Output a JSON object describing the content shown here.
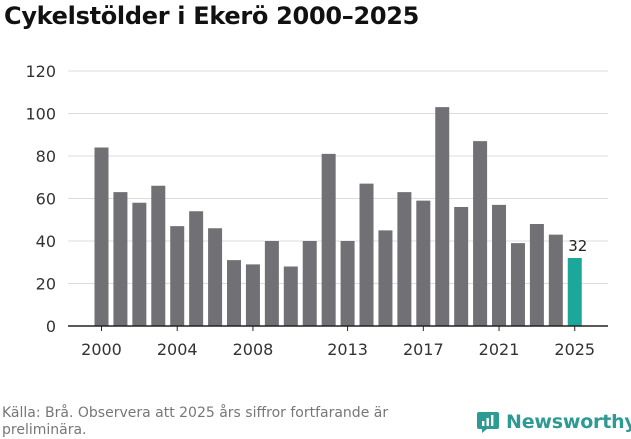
{
  "title": "Cykelstölder i Ekerö 2000–2025",
  "source": "Källa: Brå. Observera att 2025 års siffror fortfarande är preliminära.",
  "brand": {
    "name": "Newsworthy",
    "icon": "newsworthy-logo-icon",
    "color": "#2d9a93"
  },
  "colors": {
    "bar": "#717075",
    "highlight": "#1ba89a",
    "grid": "#dcdcdc",
    "axis": "#222222"
  },
  "chart_data": {
    "type": "bar",
    "title": "Cykelstölder i Ekerö 2000–2025",
    "xlabel": "",
    "ylabel": "",
    "ylim": [
      0,
      120
    ],
    "yticks": [
      0,
      20,
      40,
      60,
      80,
      100,
      120
    ],
    "xtick_labels": [
      "2000",
      "2004",
      "2008",
      "2013",
      "2017",
      "2021",
      "2025"
    ],
    "categories": [
      "2000",
      "2001",
      "2002",
      "2003",
      "2004",
      "2005",
      "2006",
      "2007",
      "2008",
      "2009",
      "2010",
      "2011",
      "2012",
      "2013",
      "2014",
      "2015",
      "2016",
      "2017",
      "2018",
      "2019",
      "2020",
      "2021",
      "2022",
      "2023",
      "2024",
      "2025"
    ],
    "values": [
      84,
      63,
      58,
      66,
      47,
      54,
      46,
      31,
      29,
      40,
      28,
      40,
      81,
      40,
      67,
      45,
      63,
      59,
      103,
      56,
      87,
      57,
      39,
      48,
      43,
      32
    ],
    "highlight": {
      "category": "2025",
      "label": "32"
    },
    "grid": true,
    "legend": "none"
  }
}
